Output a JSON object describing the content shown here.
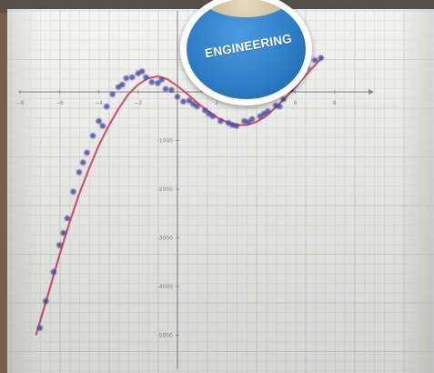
{
  "badge": {
    "text": "ENGINEERING"
  },
  "chart_data": {
    "type": "scatter",
    "title": "",
    "xlabel": "",
    "ylabel": "",
    "x_ticks": [
      -8,
      -6,
      -4,
      -2,
      2,
      4,
      6,
      8
    ],
    "y_ticks": [
      -1000,
      -2000,
      -3000,
      -4000,
      -5000
    ],
    "y_tick_labels": [
      "-1000",
      "-2000",
      "-3000",
      "-4000",
      "-5000"
    ],
    "xlim": [
      -9,
      9.5
    ],
    "ylim": [
      -5600,
      1000
    ],
    "grid": true,
    "colors": {
      "points": "#4a4aa0",
      "fit": "#d04a6a"
    },
    "series": [
      {
        "x": [
          -7,
          -6.7,
          -6.3,
          -6,
          -5.6,
          -5.3,
          -5,
          -4.6,
          -4.3,
          -4,
          -3.6,
          -3.3,
          -3,
          -2.6,
          -2.3,
          -2,
          -1.6,
          -1.3,
          -1,
          -0.6,
          -0.3,
          0,
          0.3,
          0.6,
          1,
          1.4,
          1.8,
          2.2,
          2.6,
          3,
          3.4,
          3.8,
          4.2,
          4.6,
          5,
          5.4,
          5.8,
          6.2,
          6.6,
          7,
          7.3,
          -5.8,
          -4.8,
          -3.8,
          -2.8,
          -1.8,
          -0.8,
          0.8,
          1.6,
          2.8,
          3.6,
          4.4,
          5.2,
          6
        ],
        "y": [
          -4850,
          -4300,
          -3700,
          -3150,
          -2600,
          -2050,
          -1650,
          -1250,
          -900,
          -600,
          -300,
          -50,
          100,
          280,
          300,
          380,
          300,
          200,
          180,
          60,
          40,
          -100,
          -200,
          -180,
          -300,
          -380,
          -500,
          -600,
          -640,
          -700,
          -600,
          -560,
          -500,
          -400,
          -280,
          -150,
          50,
          300,
          500,
          650,
          700,
          -2900,
          -1450,
          -700,
          150,
          420,
          250,
          -250,
          -450,
          -680,
          -620,
          -450,
          -300,
          150
        ]
      }
    ],
    "fit_curve": {
      "x": [
        -7.2,
        -6.5,
        -6,
        -5.5,
        -5,
        -4.5,
        -4,
        -3.5,
        -3,
        -2.5,
        -2,
        -1.5,
        -1,
        -0.5,
        0,
        0.5,
        1,
        1.5,
        2,
        2.5,
        3,
        3.5,
        4,
        4.5,
        5,
        5.5,
        6,
        6.5,
        7,
        7.4
      ],
      "y": [
        -5000,
        -4050,
        -3350,
        -2700,
        -2100,
        -1580,
        -1100,
        -700,
        -350,
        -50,
        150,
        280,
        320,
        260,
        120,
        -40,
        -220,
        -380,
        -520,
        -620,
        -680,
        -680,
        -620,
        -500,
        -320,
        -120,
        100,
        330,
        550,
        720
      ]
    }
  }
}
